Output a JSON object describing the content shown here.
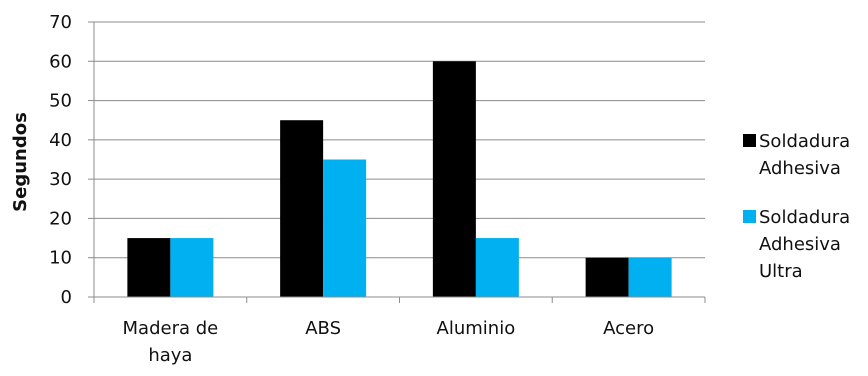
{
  "chart_data": {
    "type": "bar",
    "title": "",
    "xlabel": "",
    "ylabel": "Segundos",
    "categories": [
      [
        "Madera de",
        "haya"
      ],
      [
        "ABS"
      ],
      [
        "Aluminio"
      ],
      [
        "Acero"
      ]
    ],
    "series": [
      {
        "name": [
          "Soldadura",
          "Adhesiva"
        ],
        "color": "#000000",
        "values": [
          15,
          45,
          60,
          10
        ]
      },
      {
        "name": [
          "Soldadura",
          "Adhesiva",
          "Ultra"
        ],
        "color": "#00B0F0",
        "values": [
          15,
          35,
          15,
          10
        ]
      }
    ],
    "ylim": [
      0,
      70
    ],
    "yticks": [
      0,
      10,
      20,
      30,
      40,
      50,
      60,
      70
    ],
    "grid": true,
    "legend": "right"
  }
}
